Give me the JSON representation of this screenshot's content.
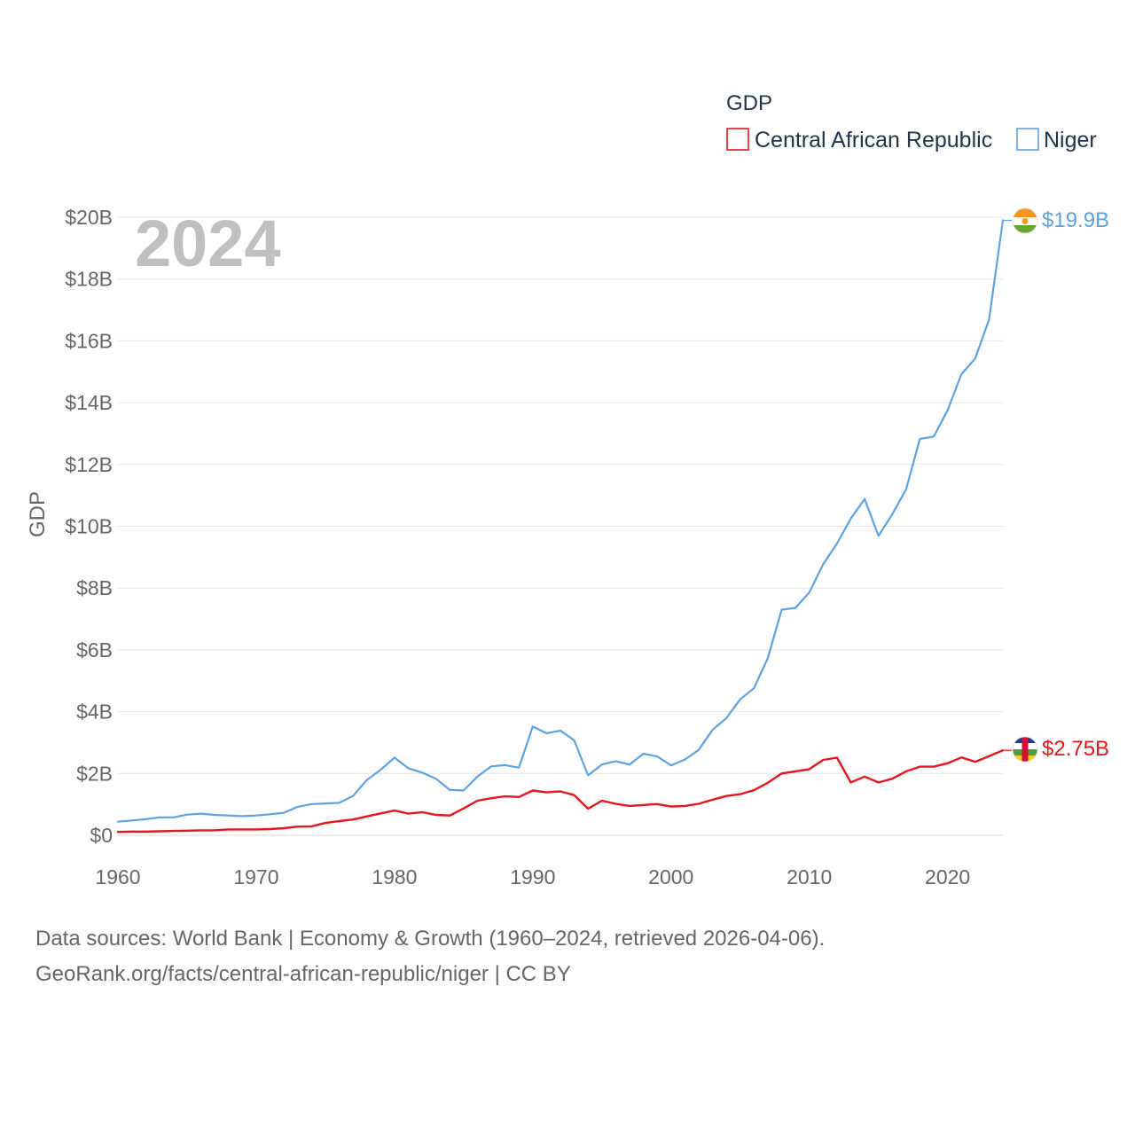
{
  "colors": {
    "car": "#e8141c",
    "niger": "#5ba3e0",
    "grid": "#e6e6e6",
    "text": "#666666"
  },
  "footer": {
    "line1": "Data sources: World Bank | Economy & Growth (1960–2024, retrieved 2026-04-06).",
    "line2": "GeoRank.org/facts/central-african-republic/niger | CC BY"
  },
  "chart_data": {
    "type": "line",
    "title": "",
    "year_label": "2024",
    "legend_title": "GDP",
    "ylabel": "GDP",
    "xlabel": "",
    "xlim": [
      1960,
      2024
    ],
    "ylim": [
      0,
      20
    ],
    "x_ticks": [
      1960,
      1970,
      1980,
      1990,
      2000,
      2010,
      2020
    ],
    "y_ticks": [
      {
        "value": 0,
        "label": "$0"
      },
      {
        "value": 2,
        "label": "$2B"
      },
      {
        "value": 4,
        "label": "$4B"
      },
      {
        "value": 6,
        "label": "$6B"
      },
      {
        "value": 8,
        "label": "$8B"
      },
      {
        "value": 10,
        "label": "$10B"
      },
      {
        "value": 12,
        "label": "$12B"
      },
      {
        "value": 14,
        "label": "$14B"
      },
      {
        "value": 16,
        "label": "$16B"
      },
      {
        "value": 18,
        "label": "$18B"
      },
      {
        "value": 20,
        "label": "$20B"
      }
    ],
    "units": "USD billions",
    "series": [
      {
        "name": "Central African Republic",
        "color": "#e8141c",
        "end_label": "$2.75B",
        "x": [
          1960,
          1961,
          1962,
          1963,
          1964,
          1965,
          1966,
          1967,
          1968,
          1969,
          1970,
          1971,
          1972,
          1973,
          1974,
          1975,
          1976,
          1977,
          1978,
          1979,
          1980,
          1981,
          1982,
          1983,
          1984,
          1985,
          1986,
          1987,
          1988,
          1989,
          1990,
          1991,
          1992,
          1993,
          1994,
          1995,
          1996,
          1997,
          1998,
          1999,
          2000,
          2001,
          2002,
          2003,
          2004,
          2005,
          2006,
          2007,
          2008,
          2009,
          2010,
          2011,
          2012,
          2013,
          2014,
          2015,
          2016,
          2017,
          2018,
          2019,
          2020,
          2021,
          2022,
          2023,
          2024
        ],
        "values": [
          0.11,
          0.12,
          0.12,
          0.13,
          0.14,
          0.15,
          0.16,
          0.16,
          0.19,
          0.19,
          0.19,
          0.2,
          0.23,
          0.28,
          0.29,
          0.4,
          0.46,
          0.51,
          0.61,
          0.71,
          0.8,
          0.7,
          0.75,
          0.66,
          0.64,
          0.87,
          1.12,
          1.2,
          1.26,
          1.24,
          1.45,
          1.39,
          1.42,
          1.3,
          0.86,
          1.12,
          1.02,
          0.95,
          0.98,
          1.01,
          0.93,
          0.95,
          1.02,
          1.15,
          1.27,
          1.33,
          1.46,
          1.7,
          2.0,
          2.07,
          2.14,
          2.44,
          2.51,
          1.71,
          1.9,
          1.71,
          1.83,
          2.07,
          2.22,
          2.22,
          2.33,
          2.52,
          2.38,
          2.56,
          2.75
        ]
      },
      {
        "name": "Niger",
        "color": "#5ba3e0",
        "end_label": "$19.9B",
        "x": [
          1960,
          1961,
          1962,
          1963,
          1964,
          1965,
          1966,
          1967,
          1968,
          1969,
          1970,
          1971,
          1972,
          1973,
          1974,
          1975,
          1976,
          1977,
          1978,
          1979,
          1980,
          1981,
          1982,
          1983,
          1984,
          1985,
          1986,
          1987,
          1988,
          1989,
          1990,
          1991,
          1992,
          1993,
          1994,
          1995,
          1996,
          1997,
          1998,
          1999,
          2000,
          2001,
          2002,
          2003,
          2004,
          2005,
          2006,
          2007,
          2008,
          2009,
          2010,
          2011,
          2012,
          2013,
          2014,
          2015,
          2016,
          2017,
          2018,
          2019,
          2020,
          2021,
          2022,
          2023,
          2024
        ],
        "values": [
          0.44,
          0.48,
          0.52,
          0.58,
          0.58,
          0.67,
          0.7,
          0.66,
          0.64,
          0.62,
          0.64,
          0.68,
          0.73,
          0.92,
          1.01,
          1.03,
          1.05,
          1.27,
          1.79,
          2.12,
          2.51,
          2.17,
          2.03,
          1.83,
          1.47,
          1.45,
          1.9,
          2.23,
          2.27,
          2.19,
          3.52,
          3.3,
          3.39,
          3.07,
          1.94,
          2.29,
          2.4,
          2.29,
          2.64,
          2.55,
          2.26,
          2.45,
          2.76,
          3.41,
          3.79,
          4.4,
          4.76,
          5.73,
          7.3,
          7.36,
          7.86,
          8.77,
          9.44,
          10.25,
          10.88,
          9.69,
          10.39,
          11.19,
          12.83,
          12.9,
          13.75,
          14.92,
          15.43,
          16.69,
          19.9
        ]
      }
    ]
  }
}
